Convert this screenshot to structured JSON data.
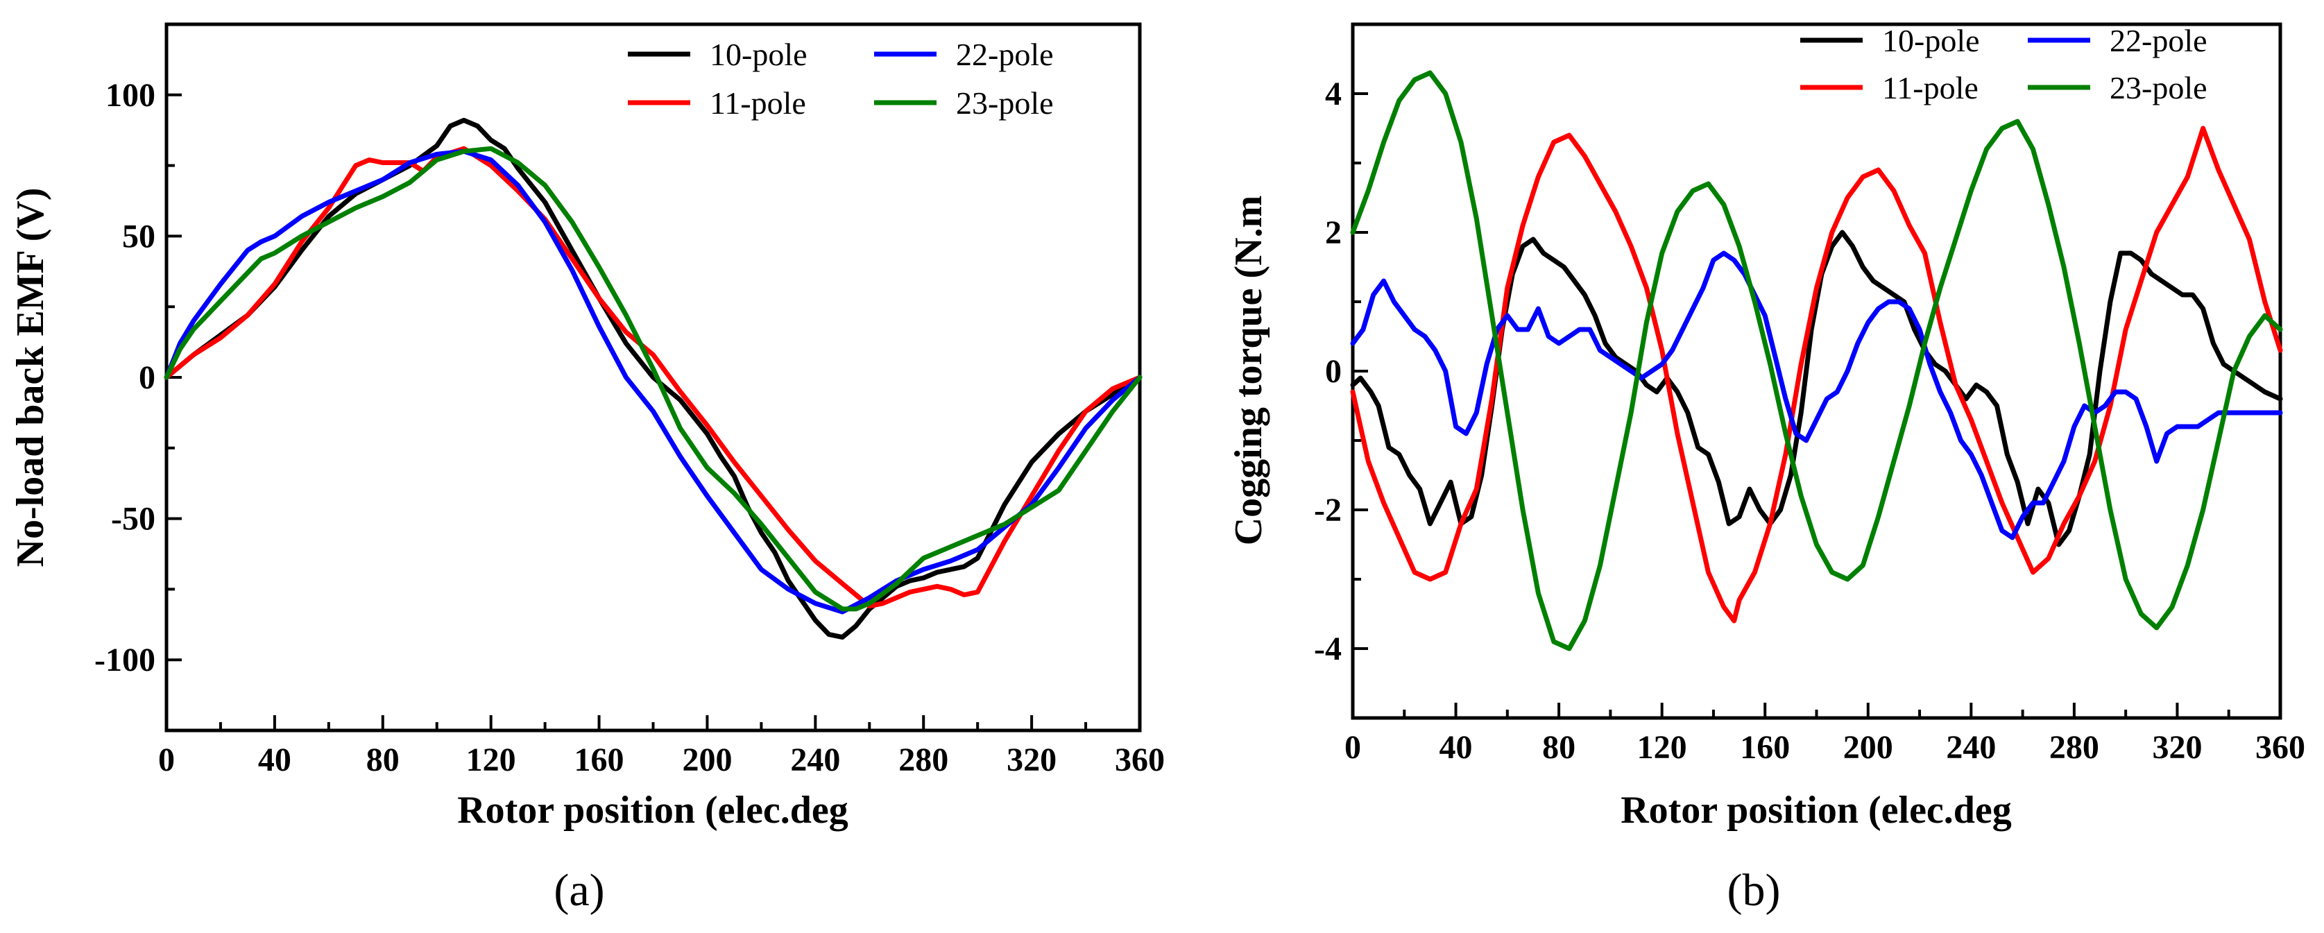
{
  "chart_data": [
    {
      "type": "line",
      "caption": "(a)",
      "xlabel": "Rotor position (elec.deg",
      "ylabel": "No-load back EMF (V)",
      "xlim": [
        0,
        360
      ],
      "ylim": [
        -125,
        125
      ],
      "xticks": [
        0,
        40,
        80,
        120,
        160,
        200,
        240,
        280,
        320,
        360
      ],
      "yticks": [
        -100,
        -50,
        0,
        50,
        100
      ],
      "xtick_labels": [
        "0",
        "40",
        "80",
        "120",
        "160",
        "200",
        "240",
        "280",
        "320",
        "360"
      ],
      "ytick_labels": [
        "-100",
        "-50",
        "0",
        "50",
        "100"
      ],
      "legend_position": "top-right",
      "series": [
        {
          "name": "10-pole",
          "color": "#000000",
          "legend_label": "10-pole",
          "x": [
            0,
            10,
            20,
            30,
            40,
            50,
            60,
            70,
            80,
            90,
            100,
            105,
            110,
            115,
            120,
            125,
            130,
            140,
            150,
            160,
            170,
            180,
            190,
            200,
            205,
            210,
            215,
            220,
            225,
            230,
            240,
            245,
            250,
            255,
            260,
            270,
            275,
            280,
            285,
            290,
            295,
            300,
            310,
            320,
            330,
            340,
            350,
            360
          ],
          "y": [
            0,
            8,
            15,
            22,
            32,
            45,
            57,
            65,
            70,
            75,
            82,
            89,
            91,
            89,
            84,
            81,
            74,
            62,
            45,
            28,
            12,
            0,
            -8,
            -20,
            -28,
            -35,
            -46,
            -55,
            -62,
            -72,
            -86,
            -91,
            -92,
            -88,
            -82,
            -74,
            -72,
            -71,
            -69,
            -68,
            -67,
            -64,
            -45,
            -30,
            -20,
            -12,
            -6,
            0
          ]
        },
        {
          "name": "11-pole",
          "color": "#ff0000",
          "legend_label": "11-pole",
          "x": [
            0,
            10,
            20,
            30,
            40,
            50,
            60,
            70,
            75,
            80,
            90,
            95,
            100,
            110,
            120,
            130,
            140,
            150,
            160,
            170,
            180,
            190,
            200,
            210,
            220,
            230,
            240,
            250,
            255,
            260,
            265,
            270,
            275,
            280,
            285,
            290,
            295,
            300,
            310,
            320,
            330,
            340,
            350,
            360
          ],
          "y": [
            0,
            8,
            14,
            22,
            33,
            48,
            60,
            75,
            77,
            76,
            76,
            73,
            78,
            81,
            75,
            66,
            56,
            42,
            28,
            16,
            8,
            -5,
            -17,
            -30,
            -42,
            -54,
            -65,
            -73,
            -77,
            -81,
            -80,
            -78,
            -76,
            -75,
            -74,
            -75,
            -77,
            -76,
            -58,
            -42,
            -26,
            -12,
            -4,
            0
          ]
        },
        {
          "name": "22-pole",
          "color": "#0000ff",
          "legend_label": "22-pole",
          "x": [
            0,
            5,
            10,
            20,
            30,
            35,
            40,
            50,
            60,
            70,
            80,
            90,
            100,
            110,
            120,
            130,
            140,
            150,
            160,
            170,
            180,
            190,
            200,
            210,
            220,
            230,
            240,
            250,
            260,
            270,
            280,
            290,
            300,
            310,
            320,
            330,
            340,
            350,
            360
          ],
          "y": [
            0,
            12,
            20,
            33,
            45,
            48,
            50,
            57,
            62,
            66,
            70,
            76,
            79,
            80,
            77,
            68,
            55,
            38,
            18,
            0,
            -12,
            -28,
            -42,
            -55,
            -68,
            -75,
            -80,
            -83,
            -78,
            -72,
            -68,
            -65,
            -61,
            -53,
            -45,
            -32,
            -18,
            -8,
            0
          ]
        },
        {
          "name": "23-pole",
          "color": "#008000",
          "legend_label": "23-pole",
          "x": [
            0,
            5,
            10,
            20,
            30,
            35,
            40,
            50,
            60,
            70,
            80,
            90,
            100,
            110,
            120,
            130,
            140,
            150,
            160,
            170,
            180,
            190,
            200,
            210,
            220,
            230,
            240,
            250,
            255,
            260,
            270,
            280,
            290,
            300,
            310,
            320,
            330,
            340,
            350,
            360
          ],
          "y": [
            0,
            10,
            17,
            27,
            37,
            42,
            44,
            50,
            55,
            60,
            64,
            69,
            77,
            80,
            81,
            76,
            68,
            55,
            39,
            22,
            3,
            -18,
            -32,
            -41,
            -52,
            -64,
            -76,
            -82,
            -82,
            -80,
            -73,
            -64,
            -60,
            -56,
            -52,
            -46,
            -40,
            -26,
            -12,
            0
          ]
        }
      ]
    },
    {
      "type": "line",
      "caption": "(b)",
      "xlabel": "Rotor position (elec.deg",
      "ylabel": "Cogging torque (N.m",
      "xlim": [
        0,
        360
      ],
      "ylim": [
        -5,
        5
      ],
      "xticks": [
        0,
        40,
        80,
        120,
        160,
        200,
        240,
        280,
        320,
        360
      ],
      "yticks": [
        -4,
        -2,
        0,
        2,
        4
      ],
      "xtick_labels": [
        "0",
        "40",
        "80",
        "120",
        "160",
        "200",
        "240",
        "280",
        "320",
        "360"
      ],
      "ytick_labels": [
        "-4",
        "-2",
        "0",
        "2",
        "4"
      ],
      "legend_position": "top-right",
      "series": [
        {
          "name": "10-pole",
          "color": "#000000",
          "legend_label": "10-pole",
          "x": [
            0,
            3,
            7,
            10,
            14,
            18,
            22,
            26,
            30,
            34,
            38,
            42,
            46,
            50,
            54,
            58,
            62,
            66,
            70,
            74,
            78,
            82,
            86,
            90,
            94,
            98,
            102,
            106,
            110,
            114,
            118,
            122,
            126,
            130,
            134,
            138,
            142,
            146,
            150,
            154,
            158,
            162,
            166,
            170,
            174,
            178,
            182,
            186,
            190,
            194,
            198,
            202,
            206,
            210,
            214,
            218,
            222,
            226,
            230,
            234,
            238,
            242,
            246,
            250,
            254,
            258,
            262,
            266,
            270,
            274,
            278,
            282,
            286,
            290,
            294,
            298,
            302,
            306,
            310,
            314,
            318,
            322,
            326,
            330,
            334,
            338,
            342,
            346,
            350,
            354,
            360
          ],
          "y": [
            -0.2,
            -0.1,
            -0.3,
            -0.5,
            -1.1,
            -1.2,
            -1.5,
            -1.7,
            -2.2,
            -1.9,
            -1.6,
            -2.2,
            -2.1,
            -1.5,
            -0.5,
            0.6,
            1.4,
            1.8,
            1.9,
            1.7,
            1.6,
            1.5,
            1.3,
            1.1,
            0.8,
            0.4,
            0.2,
            0.1,
            0.0,
            -0.2,
            -0.3,
            -0.1,
            -0.3,
            -0.6,
            -1.1,
            -1.2,
            -1.6,
            -2.2,
            -2.1,
            -1.7,
            -2.0,
            -2.2,
            -2.0,
            -1.5,
            -0.6,
            0.6,
            1.4,
            1.8,
            2.0,
            1.8,
            1.5,
            1.3,
            1.2,
            1.1,
            1.0,
            0.6,
            0.3,
            0.1,
            0.0,
            -0.2,
            -0.4,
            -0.2,
            -0.3,
            -0.5,
            -1.2,
            -1.6,
            -2.2,
            -1.7,
            -1.9,
            -2.5,
            -2.3,
            -1.8,
            -1.2,
            0.0,
            1.0,
            1.7,
            1.7,
            1.6,
            1.4,
            1.3,
            1.2,
            1.1,
            1.1,
            0.9,
            0.4,
            0.1,
            0.0,
            -0.1,
            -0.2,
            -0.3,
            -0.4
          ]
        },
        {
          "name": "11-pole",
          "color": "#ff0000",
          "legend_label": "11-pole",
          "x": [
            0,
            6,
            12,
            18,
            24,
            30,
            36,
            42,
            48,
            54,
            60,
            66,
            72,
            78,
            84,
            90,
            96,
            102,
            108,
            114,
            120,
            126,
            132,
            138,
            144,
            148,
            150,
            156,
            162,
            168,
            174,
            180,
            186,
            192,
            198,
            204,
            210,
            216,
            222,
            228,
            234,
            240,
            246,
            252,
            258,
            264,
            270,
            276,
            282,
            288,
            294,
            300,
            306,
            312,
            318,
            324,
            330,
            336,
            342,
            348,
            354,
            360
          ],
          "y": [
            -0.3,
            -1.3,
            -1.9,
            -2.4,
            -2.9,
            -3.0,
            -2.9,
            -2.2,
            -1.7,
            -0.4,
            1.2,
            2.1,
            2.8,
            3.3,
            3.4,
            3.1,
            2.7,
            2.3,
            1.8,
            1.2,
            0.3,
            -0.9,
            -1.9,
            -2.9,
            -3.4,
            -3.6,
            -3.3,
            -2.9,
            -2.2,
            -1.2,
            0.1,
            1.2,
            2.0,
            2.5,
            2.8,
            2.9,
            2.6,
            2.1,
            1.7,
            0.7,
            -0.2,
            -0.7,
            -1.3,
            -1.9,
            -2.4,
            -2.9,
            -2.7,
            -2.2,
            -1.8,
            -1.3,
            -0.5,
            0.6,
            1.3,
            2.0,
            2.4,
            2.8,
            3.5,
            2.9,
            2.4,
            1.9,
            1.0,
            0.3
          ]
        },
        {
          "name": "22-pole",
          "color": "#0000ff",
          "legend_label": "22-pole",
          "x": [
            0,
            4,
            8,
            12,
            16,
            20,
            24,
            28,
            32,
            36,
            40,
            44,
            48,
            52,
            56,
            60,
            64,
            68,
            72,
            76,
            80,
            84,
            88,
            92,
            96,
            100,
            104,
            108,
            112,
            116,
            120,
            124,
            128,
            132,
            136,
            140,
            144,
            148,
            152,
            156,
            160,
            164,
            168,
            172,
            176,
            180,
            184,
            188,
            192,
            196,
            200,
            204,
            208,
            212,
            216,
            220,
            224,
            228,
            232,
            236,
            240,
            244,
            248,
            252,
            256,
            260,
            264,
            268,
            272,
            276,
            280,
            284,
            288,
            292,
            296,
            300,
            304,
            308,
            312,
            316,
            320,
            324,
            328,
            332,
            336,
            340,
            344,
            348,
            352,
            356,
            360
          ],
          "y": [
            0.4,
            0.6,
            1.1,
            1.3,
            1.0,
            0.8,
            0.6,
            0.5,
            0.3,
            0.0,
            -0.8,
            -0.9,
            -0.6,
            0.1,
            0.6,
            0.8,
            0.6,
            0.6,
            0.9,
            0.5,
            0.4,
            0.5,
            0.6,
            0.6,
            0.3,
            0.2,
            0.1,
            0.0,
            -0.1,
            0.0,
            0.1,
            0.3,
            0.6,
            0.9,
            1.2,
            1.6,
            1.7,
            1.6,
            1.4,
            1.1,
            0.8,
            0.2,
            -0.4,
            -0.9,
            -1.0,
            -0.7,
            -0.4,
            -0.3,
            0.0,
            0.4,
            0.7,
            0.9,
            1.0,
            1.0,
            0.9,
            0.6,
            0.1,
            -0.3,
            -0.6,
            -1.0,
            -1.2,
            -1.5,
            -1.9,
            -2.3,
            -2.4,
            -2.1,
            -1.9,
            -1.9,
            -1.6,
            -1.3,
            -0.8,
            -0.5,
            -0.6,
            -0.5,
            -0.3,
            -0.3,
            -0.4,
            -0.8,
            -1.3,
            -0.9,
            -0.8,
            -0.8,
            -0.8,
            -0.7,
            -0.6,
            -0.6,
            -0.6,
            -0.6,
            -0.6,
            -0.6,
            -0.6
          ]
        },
        {
          "name": "23-pole",
          "color": "#008000",
          "legend_label": "23-pole",
          "x": [
            0,
            6,
            12,
            18,
            24,
            30,
            36,
            42,
            48,
            54,
            60,
            66,
            72,
            78,
            84,
            90,
            96,
            102,
            108,
            114,
            120,
            126,
            132,
            138,
            144,
            150,
            156,
            162,
            168,
            174,
            180,
            186,
            192,
            198,
            204,
            210,
            216,
            222,
            228,
            234,
            240,
            246,
            252,
            258,
            264,
            270,
            276,
            282,
            288,
            294,
            300,
            306,
            312,
            318,
            324,
            330,
            336,
            342,
            348,
            354,
            360
          ],
          "y": [
            2.0,
            2.6,
            3.3,
            3.9,
            4.2,
            4.3,
            4.0,
            3.3,
            2.2,
            0.8,
            -0.6,
            -2.0,
            -3.2,
            -3.9,
            -4.0,
            -3.6,
            -2.8,
            -1.7,
            -0.6,
            0.7,
            1.7,
            2.3,
            2.6,
            2.7,
            2.4,
            1.8,
            1.0,
            0.1,
            -0.9,
            -1.8,
            -2.5,
            -2.9,
            -3.0,
            -2.8,
            -2.1,
            -1.3,
            -0.5,
            0.4,
            1.2,
            1.9,
            2.6,
            3.2,
            3.5,
            3.6,
            3.2,
            2.4,
            1.5,
            0.4,
            -0.8,
            -2.0,
            -3.0,
            -3.5,
            -3.7,
            -3.4,
            -2.8,
            -2.0,
            -1.0,
            0.0,
            0.5,
            0.8,
            0.6
          ]
        }
      ]
    }
  ]
}
